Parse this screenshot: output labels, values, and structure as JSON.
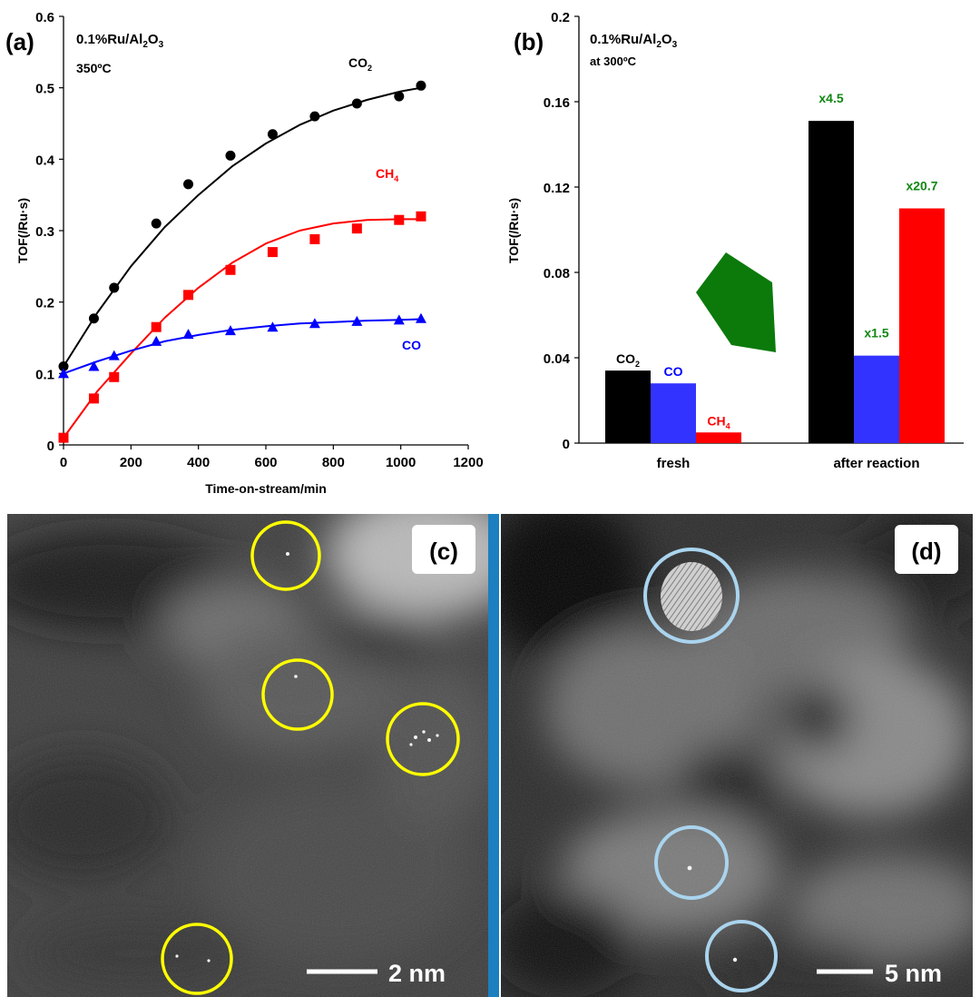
{
  "chart_data": [
    {
      "panel": "(a)",
      "type": "scatter",
      "title": "0.1%Ru/Al2O3",
      "subtitle": "350ºC",
      "xlabel": "Time-on-stream/min",
      "ylabel": "TOF(/Ru·s)",
      "xlim": [
        0,
        1200
      ],
      "ylim": [
        0,
        0.6
      ],
      "xticks": [
        "0",
        "200",
        "400",
        "600",
        "800",
        "1000",
        "1200"
      ],
      "yticks": [
        "0",
        "0.1",
        "0.2",
        "0.3",
        "0.4",
        "0.5",
        "0.6"
      ],
      "series": [
        {
          "name": "CO2",
          "label_main": "CO",
          "label_sub": "2",
          "marker": "circle",
          "color": "#000000",
          "points": [
            [
              0,
              0.11
            ],
            [
              90,
              0.177
            ],
            [
              150,
              0.22
            ],
            [
              275,
              0.31
            ],
            [
              370,
              0.365
            ],
            [
              495,
              0.405
            ],
            [
              620,
              0.435
            ],
            [
              745,
              0.46
            ],
            [
              870,
              0.478
            ],
            [
              995,
              0.488
            ],
            [
              1060,
              0.503
            ]
          ],
          "fit": [
            [
              0,
              0.11
            ],
            [
              100,
              0.185
            ],
            [
              200,
              0.25
            ],
            [
              300,
              0.305
            ],
            [
              400,
              0.35
            ],
            [
              500,
              0.39
            ],
            [
              600,
              0.422
            ],
            [
              700,
              0.448
            ],
            [
              800,
              0.468
            ],
            [
              900,
              0.483
            ],
            [
              1000,
              0.495
            ],
            [
              1060,
              0.5
            ]
          ]
        },
        {
          "name": "CH4",
          "label_main": "CH",
          "label_sub": "4",
          "marker": "square",
          "color": "#ff0000",
          "points": [
            [
              0,
              0.01
            ],
            [
              90,
              0.065
            ],
            [
              150,
              0.095
            ],
            [
              275,
              0.165
            ],
            [
              370,
              0.21
            ],
            [
              495,
              0.245
            ],
            [
              620,
              0.27
            ],
            [
              745,
              0.288
            ],
            [
              870,
              0.303
            ],
            [
              995,
              0.315
            ],
            [
              1060,
              0.32
            ]
          ],
          "fit": [
            [
              0,
              0.01
            ],
            [
              100,
              0.075
            ],
            [
              200,
              0.128
            ],
            [
              300,
              0.178
            ],
            [
              400,
              0.22
            ],
            [
              500,
              0.255
            ],
            [
              600,
              0.282
            ],
            [
              700,
              0.3
            ],
            [
              800,
              0.31
            ],
            [
              900,
              0.315
            ],
            [
              1000,
              0.316
            ],
            [
              1060,
              0.316
            ]
          ]
        },
        {
          "name": "CO",
          "label_main": "CO",
          "label_sub": "",
          "marker": "triangle",
          "color": "#0000ff",
          "points": [
            [
              0,
              0.1
            ],
            [
              90,
              0.11
            ],
            [
              150,
              0.125
            ],
            [
              275,
              0.145
            ],
            [
              370,
              0.155
            ],
            [
              495,
              0.16
            ],
            [
              620,
              0.165
            ],
            [
              745,
              0.17
            ],
            [
              870,
              0.173
            ],
            [
              995,
              0.175
            ],
            [
              1060,
              0.177
            ]
          ],
          "fit": [
            [
              0,
              0.1
            ],
            [
              100,
              0.117
            ],
            [
              200,
              0.132
            ],
            [
              300,
              0.145
            ],
            [
              400,
              0.154
            ],
            [
              500,
              0.161
            ],
            [
              600,
              0.166
            ],
            [
              700,
              0.17
            ],
            [
              800,
              0.172
            ],
            [
              900,
              0.174
            ],
            [
              1000,
              0.175
            ],
            [
              1060,
              0.176
            ]
          ]
        }
      ]
    },
    {
      "panel": "(b)",
      "type": "bar",
      "title": "0.1%Ru/Al2O3",
      "subtitle": "at 300ºC",
      "ylabel": "TOF(/Ru·s)",
      "ylim": [
        0,
        0.2
      ],
      "yticks": [
        "0",
        "0.04",
        "0.08",
        "0.12",
        "0.16",
        "0.2"
      ],
      "categories": [
        "fresh",
        "after reaction"
      ],
      "series": [
        {
          "name": "CO2",
          "color": "#000000",
          "values": [
            0.034,
            0.151
          ]
        },
        {
          "name": "CO",
          "color": "#3333ff",
          "values": [
            0.028,
            0.041
          ]
        },
        {
          "name": "CH4",
          "color": "#ff0000",
          "values": [
            0.005,
            0.11
          ]
        }
      ],
      "fresh_labels": [
        {
          "main": "CO",
          "sub": "2",
          "color": "#000000"
        },
        {
          "main": "CO",
          "sub": "",
          "color": "#0000ff"
        },
        {
          "main": "CH",
          "sub": "4",
          "color": "#ff0000"
        }
      ],
      "multipliers": [
        "x4.5",
        "x1.5",
        "x20.7"
      ],
      "multiplier_color": "#118811",
      "arrow_color": "#0b7a0b"
    }
  ],
  "panels": {
    "a_label": "(a)",
    "b_label": "(b)",
    "c_label": "(c)",
    "d_label": "(d)",
    "title_main": "0.1%Ru/Al",
    "title_sub": "2",
    "title_tail": "O",
    "title_sub2": "3",
    "a_temp": "350ºC",
    "b_temp": "at 300ºC"
  },
  "micrographs": {
    "c": {
      "scalebar": "2 nm",
      "circle_color": "#ffff00"
    },
    "d": {
      "scalebar": "5 nm",
      "circle_color": "#aad4ee"
    },
    "divider_color": "#1b7fc0"
  }
}
